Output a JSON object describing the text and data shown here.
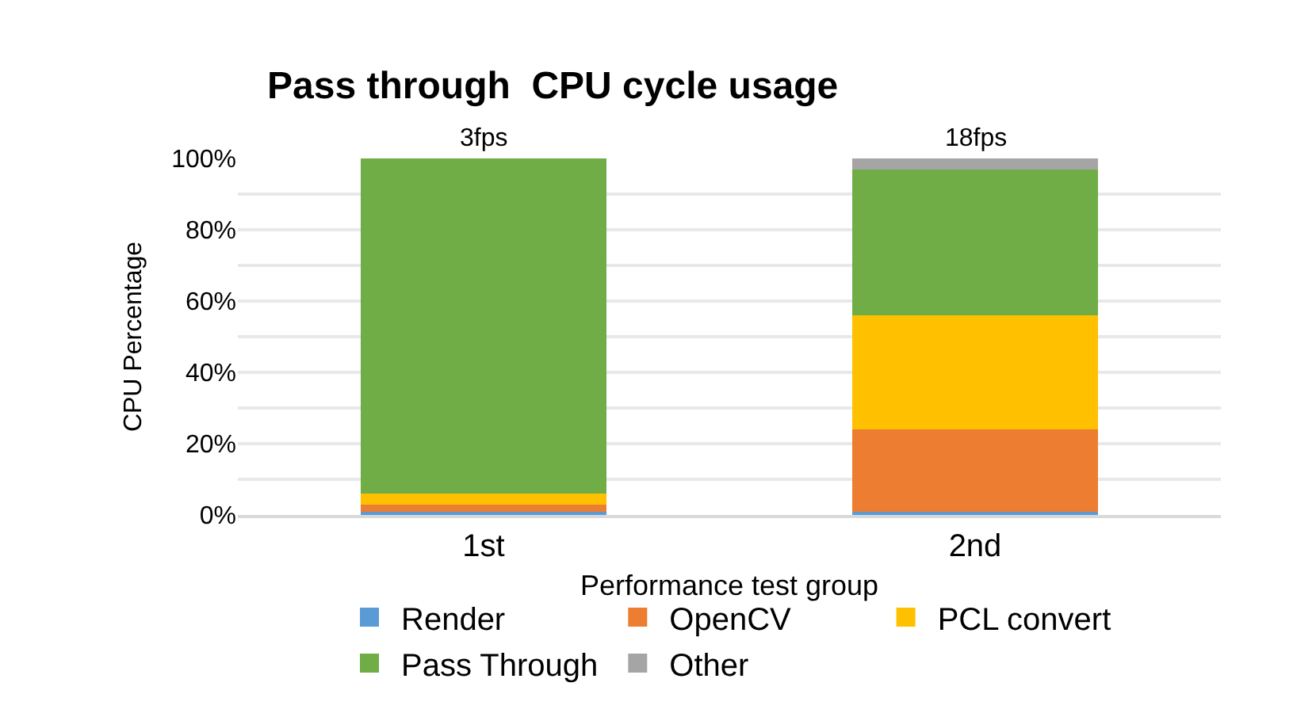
{
  "chart_data": {
    "type": "bar",
    "stacked": true,
    "title": "Pass through  CPU cycle usage",
    "xlabel": "Performance test group",
    "ylabel": "CPU Percentage",
    "categories": [
      "1st",
      "2nd"
    ],
    "series": [
      {
        "name": "Render",
        "color": "#5b9bd5",
        "values": [
          1,
          1
        ]
      },
      {
        "name": "OpenCV",
        "color": "#ed7d31",
        "values": [
          2,
          23
        ]
      },
      {
        "name": "PCL convert",
        "color": "#ffc000",
        "values": [
          3,
          32
        ]
      },
      {
        "name": "Pass Through",
        "color": "#70ad47",
        "values": [
          94,
          41
        ]
      },
      {
        "name": "Other",
        "color": "#a5a5a5",
        "values": [
          0,
          3
        ]
      }
    ],
    "ylim": [
      0,
      100
    ],
    "yticks": [
      {
        "value": 0,
        "label": "0%"
      },
      {
        "value": 10,
        "label": null
      },
      {
        "value": 20,
        "label": "20%"
      },
      {
        "value": 30,
        "label": null
      },
      {
        "value": 40,
        "label": "40%"
      },
      {
        "value": 50,
        "label": null
      },
      {
        "value": 60,
        "label": "60%"
      },
      {
        "value": 70,
        "label": null
      },
      {
        "value": 80,
        "label": "80%"
      },
      {
        "value": 90,
        "label": null
      },
      {
        "value": 100,
        "label": "100%"
      }
    ],
    "grid": "y",
    "legend": "bottom",
    "annotations": [
      {
        "text": "3fps",
        "x": "1st",
        "y": 100
      },
      {
        "text": "18fps",
        "x": "2nd",
        "y": 100
      }
    ]
  }
}
